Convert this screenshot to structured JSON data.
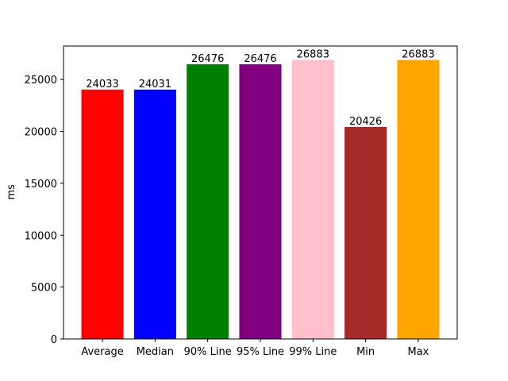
{
  "chart_data": {
    "type": "bar",
    "categories": [
      "Average",
      "Median",
      "90% Line",
      "95% Line",
      "99% Line",
      "Min",
      "Max"
    ],
    "values": [
      24033,
      24031,
      26476,
      26476,
      26883,
      20426,
      26883
    ],
    "data_labels": [
      "24033",
      "24031",
      "26476",
      "26476",
      "26883",
      "20426",
      "26883"
    ],
    "colors": [
      "#ff0000",
      "#0000ff",
      "#008000",
      "#800080",
      "#ffc0cb",
      "#a52a2a",
      "#ffa500"
    ],
    "title": "",
    "xlabel": "",
    "ylabel": "ms",
    "ylim": [
      0,
      28227
    ],
    "yticks": [
      0,
      5000,
      10000,
      15000,
      20000,
      25000
    ],
    "ytick_labels": [
      "0",
      "5000",
      "10000",
      "15000",
      "20000",
      "25000"
    ],
    "grid": false,
    "legend": "none"
  }
}
